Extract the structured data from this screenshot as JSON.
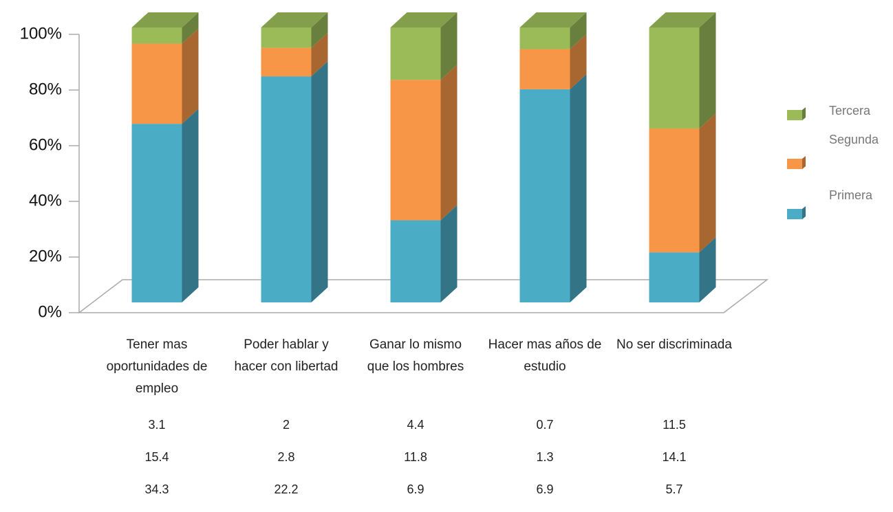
{
  "chart_data": {
    "type": "bar",
    "stacking": "percent",
    "categories": [
      "Tener mas oportunidades de empleo",
      "Poder hablar y hacer con libertad",
      "Ganar lo mismo que los hombres",
      "Hacer mas años de estudio",
      "No ser discriminada"
    ],
    "series": [
      {
        "name": "Tercera",
        "color": "#9bbb59",
        "values": [
          3.1,
          2,
          4.4,
          0.7,
          11.5
        ]
      },
      {
        "name": "Segunda",
        "color": "#f79646",
        "values": [
          15.4,
          2.8,
          11.8,
          1.3,
          14.1
        ]
      },
      {
        "name": "Primera",
        "color": "#4bacc6",
        "values": [
          34.3,
          22.2,
          6.9,
          6.9,
          5.7
        ]
      }
    ],
    "ylim": [
      0,
      100
    ],
    "yticks": [
      {
        "value": 0,
        "label": "0%"
      },
      {
        "value": 20,
        "label": "20%"
      },
      {
        "value": 40,
        "label": "40%"
      },
      {
        "value": 60,
        "label": "60%"
      },
      {
        "value": 80,
        "label": "80%"
      },
      {
        "value": 100,
        "label": "100%"
      }
    ],
    "legend": "right"
  }
}
